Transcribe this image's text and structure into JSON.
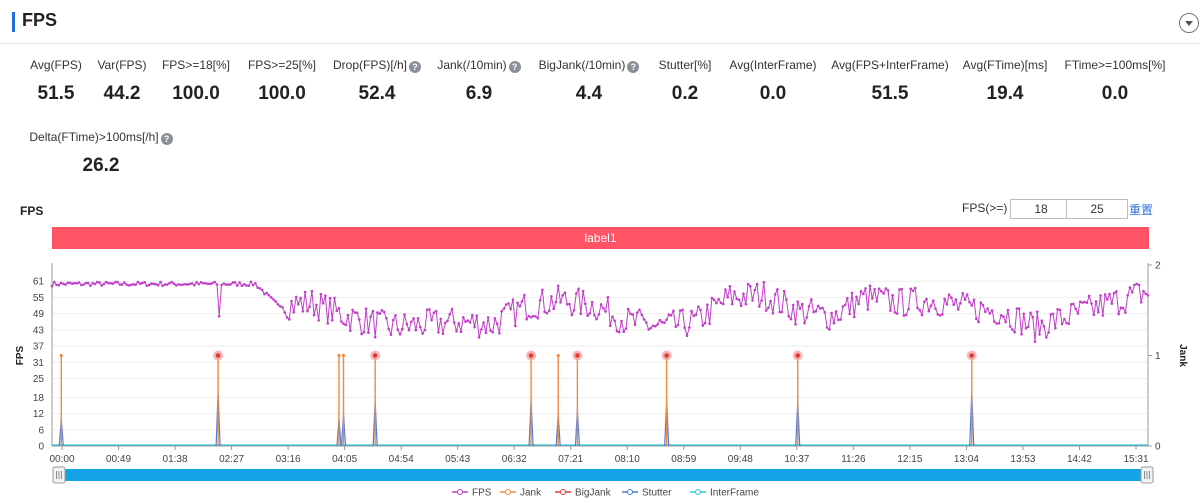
{
  "header": {
    "title": "FPS"
  },
  "stats": [
    {
      "label": "Avg(FPS)",
      "value": "51.5",
      "help": false,
      "cx": 56
    },
    {
      "label": "Var(FPS)",
      "value": "44.2",
      "help": false,
      "cx": 122
    },
    {
      "label": "FPS>=18[%]",
      "value": "100.0",
      "help": false,
      "cx": 196
    },
    {
      "label": "FPS>=25[%]",
      "value": "100.0",
      "help": false,
      "cx": 282
    },
    {
      "label": "Drop(FPS)[/h]",
      "value": "52.4",
      "help": true,
      "cx": 377
    },
    {
      "label": "Jank(/10min)",
      "value": "6.9",
      "help": true,
      "cx": 479
    },
    {
      "label": "BigJank(/10min)",
      "value": "4.4",
      "help": true,
      "cx": 589
    },
    {
      "label": "Stutter[%]",
      "value": "0.2",
      "help": false,
      "cx": 685
    },
    {
      "label": "Avg(InterFrame)",
      "value": "0.0",
      "help": false,
      "cx": 773
    },
    {
      "label": "Avg(FPS+InterFrame)",
      "value": "51.5",
      "help": false,
      "cx": 890
    },
    {
      "label": "Avg(FTime)[ms]",
      "value": "19.4",
      "help": false,
      "cx": 1005
    },
    {
      "label": "FTime>=100ms[%]",
      "value": "0.0",
      "help": false,
      "cx": 1115
    },
    {
      "label": "Delta(FTime)>100ms[/h]",
      "value": "26.2",
      "help": true,
      "cx": 101,
      "row": 1
    }
  ],
  "chart": {
    "title": "FPS",
    "filter_label": "FPS(>=)",
    "filter_values": [
      "18",
      "25"
    ],
    "reset_label": "重置",
    "band_label": "label1",
    "help_glyph": "?"
  },
  "chart_data": {
    "type": "line",
    "ylabel": "FPS",
    "y2label": "Jank",
    "y_ticks": [
      0,
      6,
      12,
      18,
      25,
      31,
      37,
      43,
      49,
      55,
      61
    ],
    "y2_ticks": [
      0,
      1,
      2
    ],
    "ylim": [
      0,
      67
    ],
    "y2lim": [
      0,
      2
    ],
    "x_ticks": [
      "00:00",
      "00:49",
      "01:38",
      "02:27",
      "03:16",
      "04:05",
      "04:54",
      "05:43",
      "06:32",
      "07:21",
      "08:10",
      "08:59",
      "09:48",
      "10:37",
      "11:26",
      "12:15",
      "13:04",
      "13:53",
      "14:42",
      "15:31"
    ],
    "x_minutes_range": [
      0,
      970
    ],
    "fps_profile_minutes": [
      0,
      120,
      180,
      200,
      230,
      260,
      300,
      330,
      360,
      390,
      420,
      450,
      480,
      510,
      540,
      570,
      600,
      630,
      660,
      690,
      720,
      750,
      780,
      810,
      840,
      870,
      900,
      930,
      960,
      970
    ],
    "fps_profile_values": [
      60,
      60,
      60,
      52,
      53,
      48,
      44,
      45,
      46,
      45,
      52,
      54,
      52,
      46,
      44,
      46,
      55,
      56,
      50,
      48,
      55,
      53,
      54,
      51,
      50,
      44,
      48,
      52,
      56,
      57
    ],
    "jank_events": [
      {
        "t": 8.2,
        "jank": 1,
        "big": false,
        "stutter": 0.3
      },
      {
        "t": 147,
        "jank": 1,
        "big": true,
        "stutter": 0.58
      },
      {
        "t": 254,
        "jank": 1,
        "big": false,
        "stutter": 0.3
      },
      {
        "t": 258,
        "jank": 1,
        "big": false,
        "stutter": 0.35
      },
      {
        "t": 286,
        "jank": 1,
        "big": true,
        "stutter": 0.5
      },
      {
        "t": 424,
        "jank": 1,
        "big": true,
        "stutter": 0.5
      },
      {
        "t": 448,
        "jank": 1,
        "big": false,
        "stutter": 0.35
      },
      {
        "t": 465,
        "jank": 1,
        "big": true,
        "stutter": 0.4
      },
      {
        "t": 544,
        "jank": 1,
        "big": true,
        "stutter": 0.5
      },
      {
        "t": 660,
        "jank": 1,
        "big": true,
        "stutter": 0.5
      },
      {
        "t": 814,
        "jank": 1,
        "big": true,
        "stutter": 0.6
      }
    ],
    "legend": [
      {
        "name": "FPS",
        "color": "#c03ec8"
      },
      {
        "name": "Jank",
        "color": "#f08a3e"
      },
      {
        "name": "BigJank",
        "color": "#e03a3a"
      },
      {
        "name": "Stutter",
        "color": "#4f7ed8"
      },
      {
        "name": "InterFrame",
        "color": "#32c6d8"
      }
    ]
  }
}
